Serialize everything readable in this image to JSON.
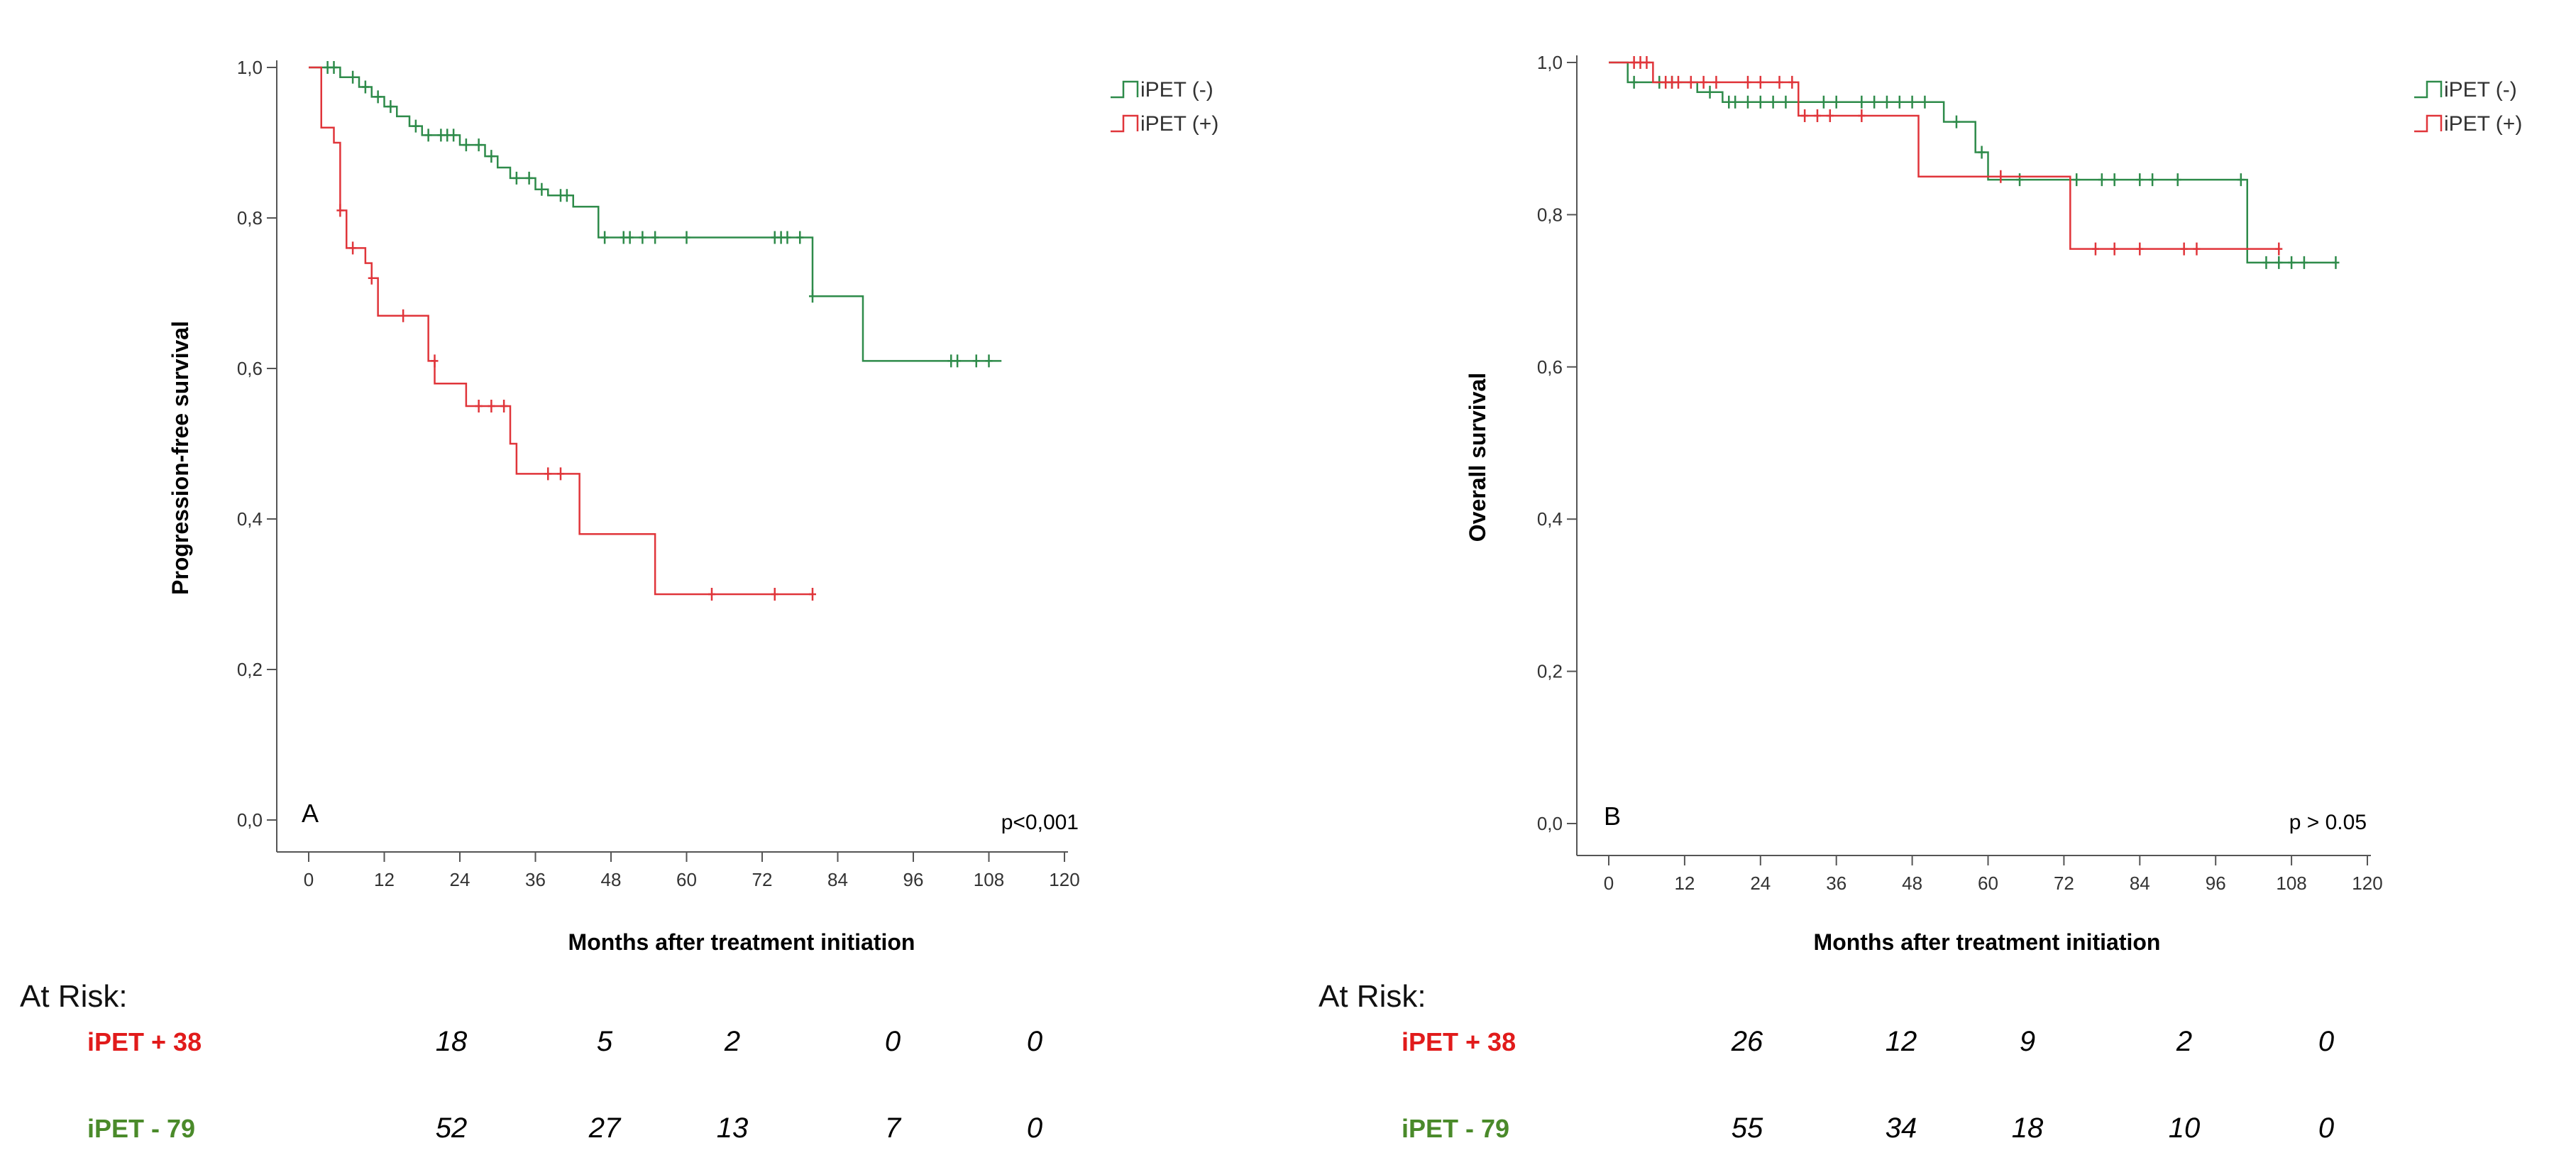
{
  "colors": {
    "negative": "#2e8b4a",
    "positive": "#e0353a",
    "risk_negative": "#4a8a2a",
    "risk_positive": "#e11b1b"
  },
  "legend": {
    "negative_label": "iPET (-)",
    "positive_label": "iPET (+)"
  },
  "chart_data": [
    {
      "type": "line",
      "subtype": "kaplan-meier",
      "panel": "A",
      "title": "",
      "xlabel": "Months after treatment initiation",
      "ylabel": "Progression-free survival",
      "xlim": [
        0,
        120
      ],
      "ylim": [
        0,
        1
      ],
      "xticks": [
        0,
        12,
        24,
        36,
        48,
        60,
        72,
        84,
        96,
        108,
        120
      ],
      "yticks": [
        0.0,
        0.2,
        0.4,
        0.6,
        0.8,
        1.0
      ],
      "xtick_labels": [
        "0",
        "12",
        "24",
        "36",
        "48",
        "60",
        "72",
        "84",
        "96",
        "108",
        "120"
      ],
      "ytick_labels": [
        "0,0",
        "0,2",
        "0,4",
        "0,6",
        "0,8",
        "1,0"
      ],
      "annotation": "p<0,001",
      "legend_position": "top-right",
      "series": [
        {
          "name": "iPET (-)",
          "color_key": "negative",
          "steps": [
            [
              0,
              1.0
            ],
            [
              5,
              0.987
            ],
            [
              8,
              0.974
            ],
            [
              10,
              0.961
            ],
            [
              12,
              0.948
            ],
            [
              14,
              0.935
            ],
            [
              16,
              0.922
            ],
            [
              18,
              0.91
            ],
            [
              20,
              0.91
            ],
            [
              24,
              0.897
            ],
            [
              26,
              0.897
            ],
            [
              28,
              0.882
            ],
            [
              30,
              0.867
            ],
            [
              32,
              0.853
            ],
            [
              34,
              0.853
            ],
            [
              36,
              0.838
            ],
            [
              38,
              0.83
            ],
            [
              42,
              0.815
            ],
            [
              46,
              0.774
            ],
            [
              48,
              0.774
            ],
            [
              80,
              0.696
            ],
            [
              88,
              0.61
            ],
            [
              110,
              0.61
            ]
          ],
          "censored": [
            [
              3,
              1.0
            ],
            [
              4,
              1.0
            ],
            [
              7,
              0.987
            ],
            [
              9,
              0.974
            ],
            [
              11,
              0.961
            ],
            [
              13,
              0.948
            ],
            [
              17,
              0.922
            ],
            [
              19,
              0.91
            ],
            [
              21,
              0.91
            ],
            [
              22,
              0.91
            ],
            [
              23,
              0.91
            ],
            [
              25,
              0.897
            ],
            [
              27,
              0.897
            ],
            [
              29,
              0.882
            ],
            [
              33,
              0.853
            ],
            [
              35,
              0.853
            ],
            [
              37,
              0.838
            ],
            [
              40,
              0.83
            ],
            [
              41,
              0.83
            ],
            [
              47,
              0.774
            ],
            [
              50,
              0.774
            ],
            [
              51,
              0.774
            ],
            [
              53,
              0.774
            ],
            [
              55,
              0.774
            ],
            [
              60,
              0.774
            ],
            [
              74,
              0.774
            ],
            [
              75,
              0.774
            ],
            [
              76,
              0.774
            ],
            [
              78,
              0.774
            ],
            [
              80,
              0.696
            ],
            [
              102,
              0.61
            ],
            [
              103,
              0.61
            ],
            [
              106,
              0.61
            ],
            [
              108,
              0.61
            ]
          ]
        },
        {
          "name": "iPET (+)",
          "color_key": "positive",
          "steps": [
            [
              0,
              1.0
            ],
            [
              2,
              0.92
            ],
            [
              4,
              0.9
            ],
            [
              5,
              0.81
            ],
            [
              6,
              0.76
            ],
            [
              9,
              0.74
            ],
            [
              10,
              0.72
            ],
            [
              11,
              0.67
            ],
            [
              19,
              0.61
            ],
            [
              20,
              0.58
            ],
            [
              25,
              0.55
            ],
            [
              32,
              0.5
            ],
            [
              33,
              0.46
            ],
            [
              43,
              0.38
            ],
            [
              55,
              0.3
            ],
            [
              80,
              0.3
            ]
          ],
          "censored": [
            [
              5,
              0.81
            ],
            [
              7,
              0.76
            ],
            [
              10,
              0.72
            ],
            [
              15,
              0.67
            ],
            [
              20,
              0.61
            ],
            [
              27,
              0.55
            ],
            [
              29,
              0.55
            ],
            [
              31,
              0.55
            ],
            [
              38,
              0.46
            ],
            [
              40,
              0.46
            ],
            [
              64,
              0.3
            ],
            [
              74,
              0.3
            ],
            [
              80,
              0.3
            ]
          ]
        }
      ]
    },
    {
      "type": "line",
      "subtype": "kaplan-meier",
      "panel": "B",
      "title": "",
      "xlabel": "Months after treatment initiation",
      "ylabel": "Overall survival",
      "xlim": [
        0,
        120
      ],
      "ylim": [
        0,
        1
      ],
      "xticks": [
        0,
        12,
        24,
        36,
        48,
        60,
        72,
        84,
        96,
        108,
        120
      ],
      "yticks": [
        0.0,
        0.2,
        0.4,
        0.6,
        0.8,
        1.0
      ],
      "xtick_labels": [
        "0",
        "12",
        "24",
        "36",
        "48",
        "60",
        "72",
        "84",
        "96",
        "108",
        "120"
      ],
      "ytick_labels": [
        "0,0",
        "0,2",
        "0,4",
        "0,6",
        "0,8",
        "1,0"
      ],
      "annotation": "p > 0.05",
      "legend_position": "top-right",
      "series": [
        {
          "name": "iPET (-)",
          "color_key": "negative",
          "steps": [
            [
              0,
              1.0
            ],
            [
              3,
              0.974
            ],
            [
              14,
              0.961
            ],
            [
              18,
              0.948
            ],
            [
              53,
              0.922
            ],
            [
              58,
              0.882
            ],
            [
              60,
              0.846
            ],
            [
              101,
              0.737
            ],
            [
              115,
              0.737
            ]
          ],
          "censored": [
            [
              4,
              0.974
            ],
            [
              8,
              0.974
            ],
            [
              10,
              0.974
            ],
            [
              16,
              0.961
            ],
            [
              19,
              0.948
            ],
            [
              20,
              0.948
            ],
            [
              22,
              0.948
            ],
            [
              24,
              0.948
            ],
            [
              26,
              0.948
            ],
            [
              28,
              0.948
            ],
            [
              30,
              0.948
            ],
            [
              34,
              0.948
            ],
            [
              36,
              0.948
            ],
            [
              40,
              0.948
            ],
            [
              42,
              0.948
            ],
            [
              44,
              0.948
            ],
            [
              46,
              0.948
            ],
            [
              48,
              0.948
            ],
            [
              50,
              0.948
            ],
            [
              55,
              0.922
            ],
            [
              59,
              0.882
            ],
            [
              65,
              0.846
            ],
            [
              74,
              0.846
            ],
            [
              78,
              0.846
            ],
            [
              80,
              0.846
            ],
            [
              84,
              0.846
            ],
            [
              86,
              0.846
            ],
            [
              90,
              0.846
            ],
            [
              100,
              0.846
            ],
            [
              104,
              0.737
            ],
            [
              106,
              0.737
            ],
            [
              108,
              0.737
            ],
            [
              110,
              0.737
            ],
            [
              115,
              0.737
            ]
          ]
        },
        {
          "name": "iPET (+)",
          "color_key": "positive",
          "steps": [
            [
              0,
              1.0
            ],
            [
              7,
              0.974
            ],
            [
              30,
              0.93
            ],
            [
              49,
              0.85
            ],
            [
              73,
              0.755
            ],
            [
              106,
              0.755
            ]
          ],
          "censored": [
            [
              4,
              1.0
            ],
            [
              5,
              1.0
            ],
            [
              6,
              1.0
            ],
            [
              9,
              0.974
            ],
            [
              10,
              0.974
            ],
            [
              11,
              0.974
            ],
            [
              13,
              0.974
            ],
            [
              15,
              0.974
            ],
            [
              17,
              0.974
            ],
            [
              22,
              0.974
            ],
            [
              24,
              0.974
            ],
            [
              27,
              0.974
            ],
            [
              29,
              0.974
            ],
            [
              31,
              0.93
            ],
            [
              33,
              0.93
            ],
            [
              35,
              0.93
            ],
            [
              40,
              0.93
            ],
            [
              62,
              0.85
            ],
            [
              77,
              0.755
            ],
            [
              80,
              0.755
            ],
            [
              84,
              0.755
            ],
            [
              91,
              0.755
            ],
            [
              93,
              0.755
            ],
            [
              106,
              0.755
            ]
          ]
        }
      ]
    }
  ],
  "at_risk": {
    "heading": "At Risk:",
    "panels": [
      {
        "panel": "A",
        "rows": [
          {
            "label": "iPET + 38",
            "color_key": "risk_positive",
            "values": [
              "18",
              "5",
              "2",
              "0",
              "0"
            ]
          },
          {
            "label": "iPET - 79",
            "color_key": "risk_negative",
            "values": [
              "52",
              "27",
              "13",
              "7",
              "0"
            ]
          }
        ]
      },
      {
        "panel": "B",
        "rows": [
          {
            "label": "iPET + 38",
            "color_key": "risk_positive",
            "values": [
              "26",
              "12",
              "9",
              "2",
              "0"
            ]
          },
          {
            "label": "iPET - 79",
            "color_key": "risk_negative",
            "values": [
              "55",
              "34",
              "18",
              "10",
              "0"
            ]
          }
        ]
      }
    ]
  }
}
